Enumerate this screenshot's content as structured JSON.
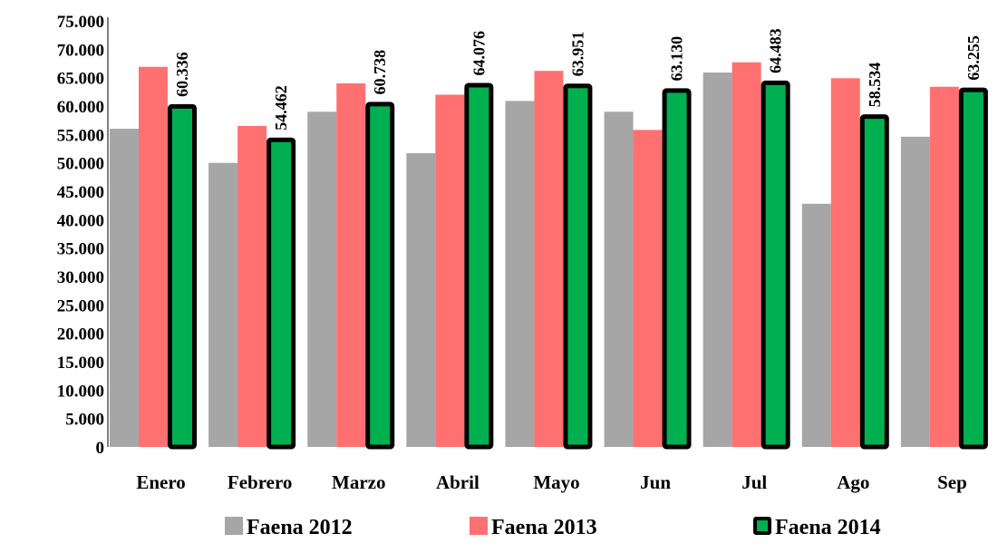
{
  "chart_data": {
    "type": "bar",
    "title": "",
    "xlabel": "",
    "ylabel": "",
    "categories": [
      "Enero",
      "Febrero",
      "Marzo",
      "Abril",
      "Mayo",
      "Jun",
      "Jul",
      "Ago",
      "Sep"
    ],
    "series": [
      {
        "name": "Faena 2012",
        "values": [
          56000,
          50000,
          59000,
          51700,
          60900,
          59000,
          65900,
          42800,
          54600
        ]
      },
      {
        "name": "Faena 2013",
        "values": [
          66900,
          56500,
          64000,
          62000,
          66200,
          55800,
          67700,
          64900,
          63400
        ]
      },
      {
        "name": "Faena 2014",
        "values": [
          60336,
          54462,
          60738,
          64076,
          63951,
          63130,
          64483,
          58534,
          63255
        ]
      }
    ],
    "data_labels": [
      "60.336",
      "54.462",
      "60.738",
      "64.076",
      "63.951",
      "63.130",
      "64.483",
      "58.534",
      "63.255"
    ],
    "yticks": [
      "0",
      "5.000",
      "10.000",
      "15.000",
      "20.000",
      "25.000",
      "30.000",
      "35.000",
      "40.000",
      "45.000",
      "50.000",
      "55.000",
      "60.000",
      "65.000",
      "70.000",
      "75.000"
    ],
    "ylim": [
      0,
      75000
    ],
    "grid": false,
    "legend_position": "bottom",
    "colors": {
      "Faena 2012": "#a6a6a6",
      "Faena 2013": "#ff7171",
      "Faena 2014": "#00b050",
      "border_2014": "#000000"
    }
  }
}
